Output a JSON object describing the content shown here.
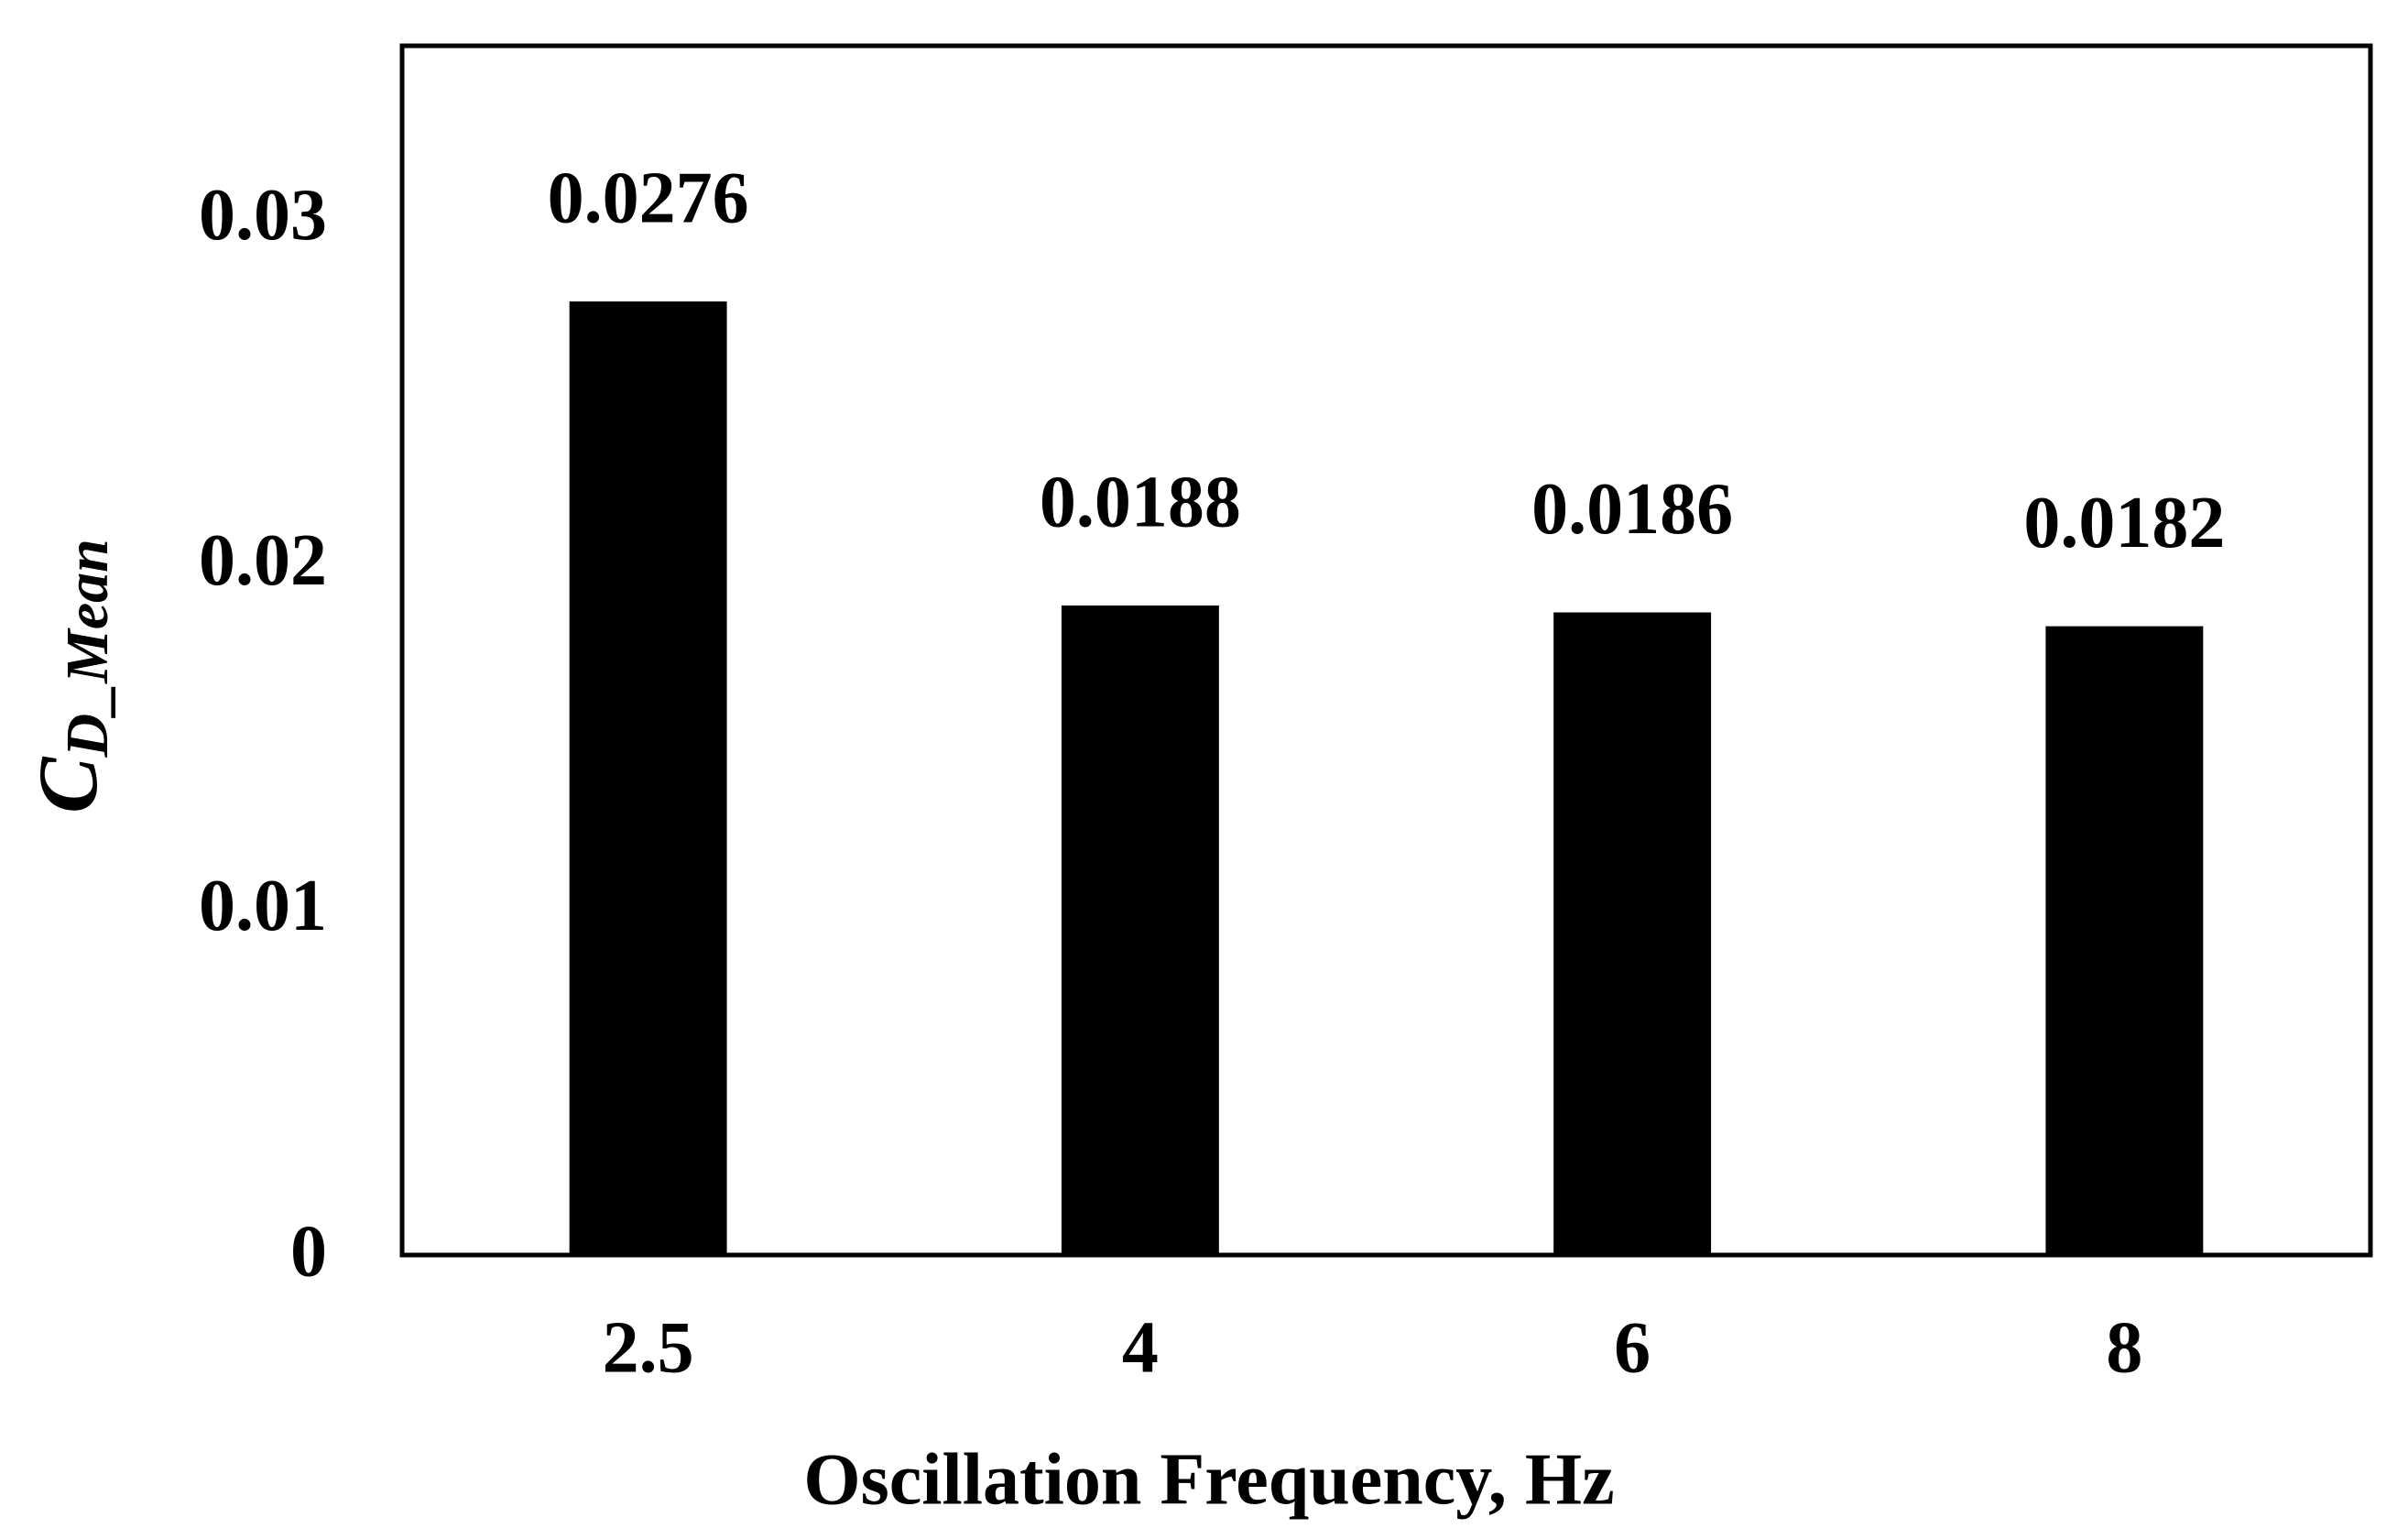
{
  "chart_data": {
    "type": "bar",
    "x_label": "Oscillation Frequency, Hz",
    "y_label": "C",
    "y_label_subscript": "D_Mean",
    "categories": [
      "2.5",
      "4",
      "6",
      "8"
    ],
    "values": [
      0.0276,
      0.0188,
      0.0186,
      0.0182
    ],
    "color": "#000000",
    "ylim": [
      0,
      0.035
    ],
    "yticks": [
      0,
      0.01,
      0.02,
      0.03
    ],
    "grid": false
  }
}
